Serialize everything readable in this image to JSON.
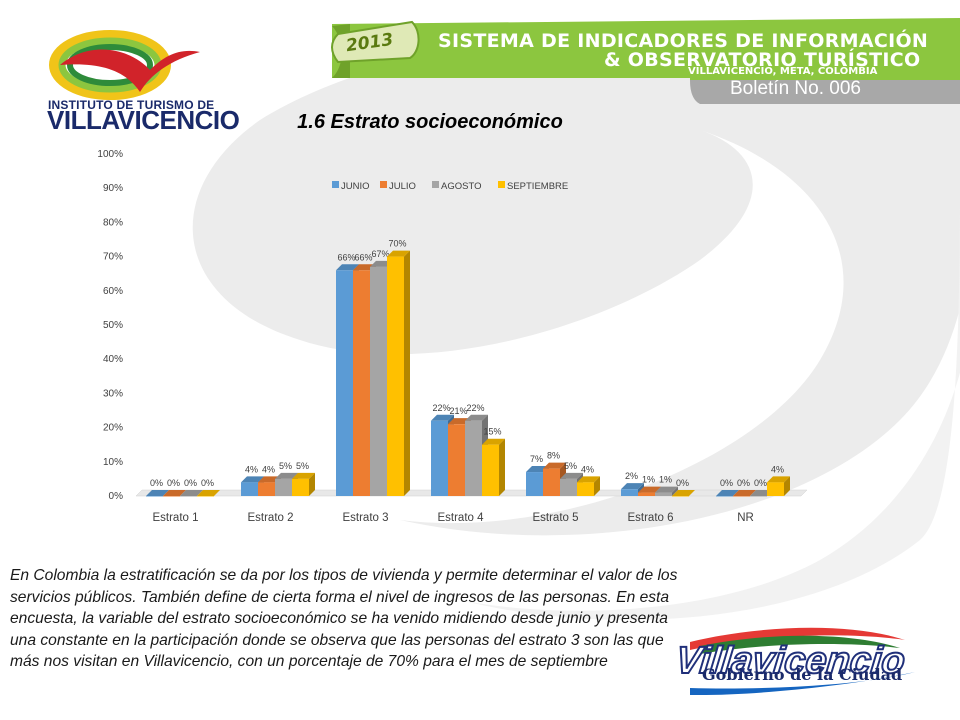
{
  "header": {
    "org_line1": "INSTITUTO DE TURISMO DE",
    "org_line2": "VILLAVICENCIO",
    "year": "2013",
    "banner_line1": "SISTEMA DE INDICADORES DE INFORMACIÓN",
    "banner_line2": "& OBSERVATORIO TURÍSTICO",
    "banner_line3": "VILLAVICENCIO, META, COLOMBIA",
    "bulletin": "Boletín No. 006"
  },
  "colors": {
    "green": "#8cc63f",
    "green_dark": "#6fa22a",
    "gray_panel": "#a8a8a8",
    "junio": "#5b9bd5",
    "julio": "#ed7d31",
    "agosto": "#a5a5a5",
    "septiembre": "#ffc000"
  },
  "chart_data": {
    "type": "bar",
    "title": "1.6 Estrato socioeconómico",
    "categories": [
      "Estrato 1",
      "Estrato 2",
      "Estrato 3",
      "Estrato 4",
      "Estrato 5",
      "Estrato 6",
      "NR"
    ],
    "series": [
      {
        "name": "JUNIO",
        "values": [
          0,
          4,
          66,
          22,
          7,
          2,
          0
        ],
        "labels": [
          "0%",
          "4%",
          "66%",
          "22%",
          "7%",
          "2%",
          "0%"
        ]
      },
      {
        "name": "JULIO",
        "values": [
          0,
          4,
          66,
          21,
          8,
          1,
          0
        ],
        "labels": [
          "0%",
          "4%",
          "66%",
          "21%",
          "8%",
          "1%",
          "0%"
        ]
      },
      {
        "name": "AGOSTO",
        "values": [
          0,
          5,
          67,
          22,
          5,
          1,
          0
        ],
        "labels": [
          "0%",
          "5%",
          "67%",
          "22%",
          "5%",
          "1%",
          "0%"
        ]
      },
      {
        "name": "SEPTIEMBRE",
        "values": [
          0,
          5,
          70,
          15,
          4,
          0,
          4
        ],
        "labels": [
          "0%",
          "5%",
          "70%",
          "15%",
          "4%",
          "0%",
          "4%"
        ]
      }
    ],
    "ylim": [
      0,
      100
    ],
    "yticks": [
      "0%",
      "10%",
      "20%",
      "30%",
      "40%",
      "50%",
      "60%",
      "70%",
      "80%",
      "90%",
      "100%"
    ],
    "legend_position": "top",
    "grid": false
  },
  "body_text": "En Colombia la estratificación se da por los tipos de vivienda y permite determinar el valor de los servicios públicos. También define de cierta forma el nivel de ingresos de las personas. En esta encuesta, la variable del estrato socioeconómico se ha venido midiendo desde junio y presenta una constante en la participación donde se observa que las personas del estrato 3 son las que más nos visitan en Villavicencio, con un porcentaje de 70% para el mes de septiembre",
  "footer": {
    "city_name": "Villavicencio",
    "city_tagline": "Gobierno de la Ciudad"
  }
}
